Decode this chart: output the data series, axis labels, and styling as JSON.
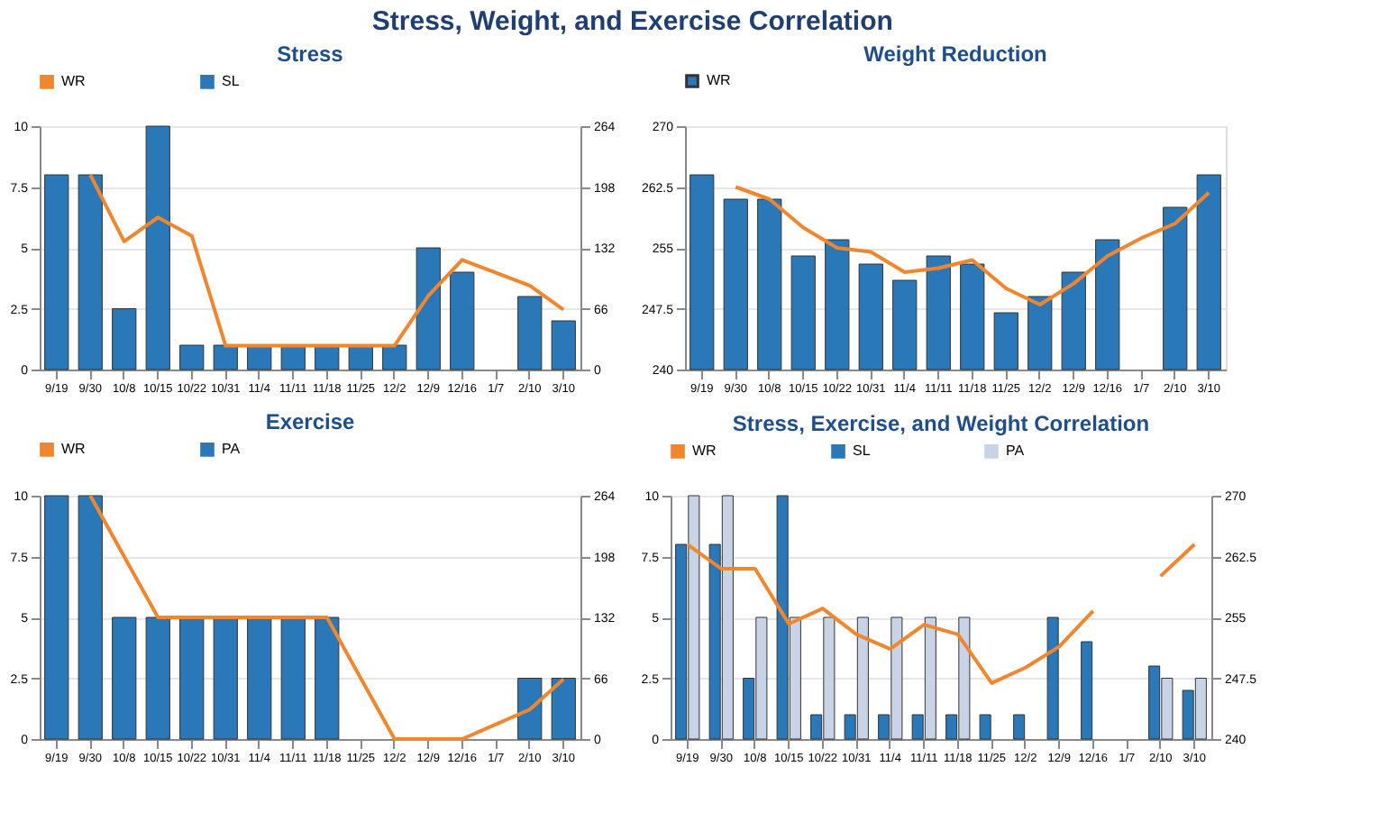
{
  "chart_data": [
    {
      "type": "bar",
      "title": "Stress",
      "annotations": [
        "Stress, Weight, and Exercise Correlation"
      ],
      "categories": [
        "9/19",
        "9/30",
        "10/8",
        "10/15",
        "10/22",
        "10/31",
        "11/4",
        "11/11",
        "11/18",
        "11/25",
        "12/2",
        "12/9",
        "12/16",
        "1/7",
        "2/10",
        "3/10"
      ],
      "ylim": [
        0,
        10
      ],
      "yticks": [
        0,
        2.5,
        5,
        7.5,
        10
      ],
      "y2lim": [
        0,
        264
      ],
      "y2ticks": [
        0,
        66,
        132,
        198,
        264
      ],
      "grid": "y",
      "legend": "top",
      "series": [
        {
          "type": "line",
          "axis": "y2",
          "name": "WR",
          "color": "#f0862e",
          "values": [
            null,
            211,
            139,
            165,
            145,
            26,
            26,
            26,
            26,
            26,
            26,
            80,
            119,
            105,
            91,
            65
          ]
        },
        {
          "name": "SL",
          "color": "#2a78b8",
          "values": [
            8,
            8,
            2.5,
            10,
            1,
            1,
            1,
            1,
            1,
            1,
            1,
            5,
            4,
            null,
            3,
            2
          ]
        }
      ]
    },
    {
      "type": "bar",
      "title": "Weight Reduction",
      "categories": [
        "9/19",
        "9/30",
        "10/8",
        "10/15",
        "10/22",
        "10/31",
        "11/4",
        "11/11",
        "11/18",
        "11/25",
        "12/2",
        "12/9",
        "12/16",
        "1/7",
        "2/10",
        "3/10"
      ],
      "ylim": [
        240,
        270
      ],
      "yticks": [
        240,
        247.5,
        255,
        262.5,
        270
      ],
      "grid": "y",
      "legend": "top",
      "series": [
        {
          "name": "WR",
          "color": "#2a78b8",
          "values": [
            264,
            261,
            261,
            254,
            256,
            253,
            251,
            254,
            253,
            247,
            249,
            252,
            256,
            null,
            260,
            264
          ]
        },
        {
          "type": "line",
          "color": "#f0862e",
          "values": [
            null,
            262.5,
            261,
            257.5,
            255,
            254.5,
            252,
            252.5,
            253.5,
            250,
            248,
            250.6,
            254,
            256.2,
            258,
            261.8
          ]
        }
      ]
    },
    {
      "type": "bar",
      "title": "Exercise",
      "categories": [
        "9/19",
        "9/30",
        "10/8",
        "10/15",
        "10/22",
        "10/31",
        "11/4",
        "11/11",
        "11/18",
        "11/25",
        "12/2",
        "12/9",
        "12/16",
        "1/7",
        "2/10",
        "3/10"
      ],
      "ylim": [
        0,
        10
      ],
      "yticks": [
        0,
        2.5,
        5,
        7.5,
        10
      ],
      "y2lim": [
        0,
        264
      ],
      "y2ticks": [
        0,
        66,
        132,
        198,
        264
      ],
      "grid": "y",
      "legend": "top",
      "series": [
        {
          "type": "line",
          "axis": "y2",
          "name": "WR",
          "color": "#f0862e",
          "values": [
            null,
            264,
            198,
            132,
            132,
            132,
            132,
            132,
            132,
            66,
            0,
            0,
            0,
            16,
            32,
            65
          ]
        },
        {
          "name": "PA",
          "color": "#2a78b8",
          "values": [
            10,
            10,
            5,
            5,
            5,
            5,
            5,
            5,
            5,
            null,
            null,
            null,
            null,
            null,
            2.5,
            2.5
          ]
        }
      ]
    },
    {
      "type": "bar",
      "title": "Stress, Exercise, and Weight Correlation",
      "categories": [
        "9/19",
        "9/30",
        "10/8",
        "10/15",
        "10/22",
        "10/31",
        "11/4",
        "11/11",
        "11/18",
        "11/25",
        "12/2",
        "12/9",
        "12/16",
        "1/7",
        "2/10",
        "3/10"
      ],
      "ylim": [
        0,
        10
      ],
      "yticks": [
        0,
        2.5,
        5,
        7.5,
        10
      ],
      "y2lim": [
        240,
        270
      ],
      "y2ticks": [
        240,
        247.5,
        255,
        262.5,
        270
      ],
      "grid": "y",
      "legend": "top",
      "series": [
        {
          "type": "line",
          "axis": "y2",
          "name": "WR",
          "color": "#f0862e",
          "values": [
            264,
            261,
            261,
            254.2,
            256.1,
            252.9,
            251.1,
            254.1,
            252.9,
            246.9,
            248.8,
            251.4,
            255.8,
            null,
            260.1,
            264
          ]
        },
        {
          "name": "SL",
          "color": "#2a78b8",
          "values": [
            8,
            8,
            2.5,
            10,
            1,
            1,
            1,
            1,
            1,
            1,
            1,
            5,
            4,
            null,
            3,
            2
          ]
        },
        {
          "name": "PA",
          "color": "#c8d4e6",
          "values": [
            10,
            10,
            5,
            5,
            5,
            5,
            5,
            5,
            5,
            null,
            null,
            null,
            null,
            null,
            2.5,
            2.5
          ]
        }
      ]
    }
  ]
}
